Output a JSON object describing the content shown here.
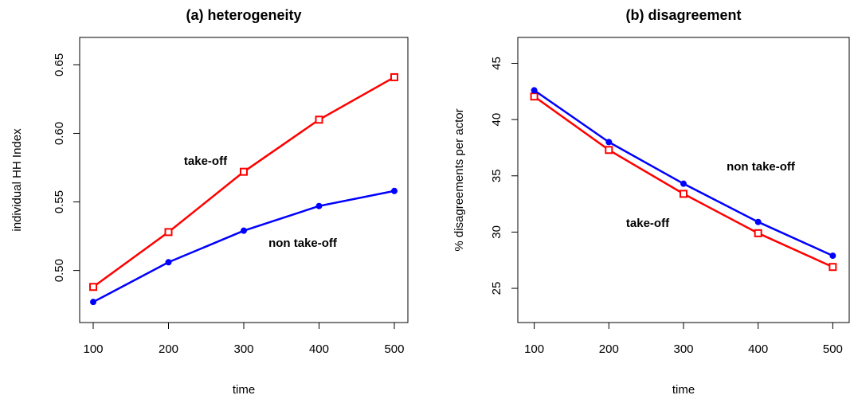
{
  "chart_data": [
    {
      "type": "line",
      "title": "(a) heterogeneity",
      "x_label": "time",
      "y_label": "individual HH Index",
      "x": [
        100,
        200,
        300,
        400,
        500
      ],
      "xlim": [
        82,
        518
      ],
      "xticks": [
        100,
        200,
        300,
        400,
        500
      ],
      "ylim": [
        0.462,
        0.67
      ],
      "yticks": [
        {
          "value": 0.5,
          "label": "0.50"
        },
        {
          "value": 0.55,
          "label": "0.55"
        },
        {
          "value": 0.6,
          "label": "0.60"
        },
        {
          "value": 0.65,
          "label": "0.65"
        }
      ],
      "series": [
        {
          "color": "#ff0000",
          "marker": "square",
          "values": [
            0.488,
            0.528,
            0.572,
            0.61,
            0.641
          ]
        },
        {
          "color": "#0000ff",
          "marker": "circle",
          "values": [
            0.477,
            0.506,
            0.529,
            0.547,
            0.558
          ]
        }
      ],
      "annotations": [
        "take-off",
        "non take-off"
      ]
    },
    {
      "type": "line",
      "title": "(b) disagreement",
      "x_label": "time",
      "y_label": "% disagreements per actor",
      "x": [
        100,
        200,
        300,
        400,
        500
      ],
      "xlim": [
        78,
        522
      ],
      "xticks": [
        100,
        200,
        300,
        400,
        500
      ],
      "ylim": [
        21.96,
        47.3
      ],
      "yticks": [
        25,
        30,
        35,
        40,
        45
      ],
      "series": [
        {
          "color": "#ff0000",
          "marker": "square",
          "values": [
            42.05,
            37.3,
            33.4,
            29.9,
            26.9
          ]
        },
        {
          "color": "#0000ff",
          "marker": "circle",
          "values": [
            42.6,
            38.0,
            34.3,
            30.9,
            27.9
          ]
        }
      ],
      "annotations": [
        "take-off",
        "non take-off"
      ]
    }
  ]
}
